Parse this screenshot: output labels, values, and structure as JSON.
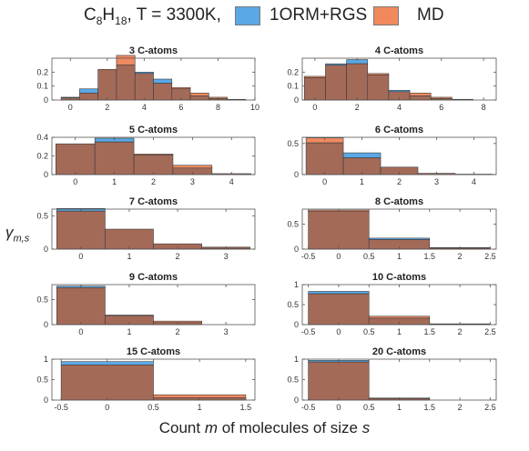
{
  "legend": {
    "title_parts": {
      "c": "C",
      "c_sub": "8",
      "h": "H",
      "h_sub": "18",
      "rest": ", T = 3300K,"
    },
    "series": [
      {
        "name": "1ORM+RGS",
        "color": "#5aa9e6"
      },
      {
        "name": "MD",
        "color": "#f08a5d"
      }
    ]
  },
  "y_label": {
    "main": "γ",
    "sub": "m,s"
  },
  "x_label": {
    "prefix": "Count ",
    "var": "m",
    "suffix": " of molecules of size ",
    "var2": "s"
  },
  "colors": {
    "rgs": "#5aa9e6",
    "md": "#ef8a62",
    "overlap": "#a46a58",
    "edge": "#3a3a3a"
  },
  "chart_data": [
    {
      "type": "bar",
      "title": "3 C-atoms",
      "bins": [
        0,
        1,
        2,
        3,
        4,
        5,
        6,
        7,
        8,
        9
      ],
      "rgs": [
        0.02,
        0.08,
        0.22,
        0.25,
        0.2,
        0.15,
        0.08,
        0.03,
        0.01,
        0.005
      ],
      "md": [
        0.015,
        0.05,
        0.22,
        0.32,
        0.19,
        0.12,
        0.09,
        0.05,
        0.02,
        0.0
      ],
      "xlim": [
        -1,
        10
      ],
      "ylim": [
        0,
        0.3
      ],
      "xticks": [
        0,
        2,
        4,
        6,
        8,
        10
      ],
      "yticks": [
        0,
        0.1,
        0.2
      ]
    },
    {
      "type": "bar",
      "title": "4 C-atoms",
      "bins": [
        0,
        1,
        2,
        3,
        4,
        5,
        6,
        7
      ],
      "rgs": [
        0.16,
        0.26,
        0.29,
        0.18,
        0.07,
        0.03,
        0.01,
        0.002
      ],
      "md": [
        0.17,
        0.25,
        0.26,
        0.19,
        0.06,
        0.05,
        0.02,
        0.005
      ],
      "xlim": [
        -0.6,
        8.6
      ],
      "ylim": [
        0,
        0.3
      ],
      "xticks": [
        0,
        2,
        4,
        6,
        8
      ],
      "yticks": [
        0,
        0.1,
        0.2
      ]
    },
    {
      "type": "bar",
      "title": "5 C-atoms",
      "bins": [
        0,
        1,
        2,
        3,
        4
      ],
      "rgs": [
        0.33,
        0.39,
        0.21,
        0.07,
        0.01
      ],
      "md": [
        0.33,
        0.35,
        0.22,
        0.1,
        0.01
      ],
      "xlim": [
        -0.6,
        4.6
      ],
      "ylim": [
        0,
        0.4
      ],
      "xticks": [
        0,
        1,
        2,
        3,
        4
      ],
      "yticks": [
        0,
        0.2,
        0.4
      ]
    },
    {
      "type": "bar",
      "title": "6 C-atoms",
      "bins": [
        0,
        1,
        2,
        3,
        4
      ],
      "rgs": [
        0.51,
        0.35,
        0.12,
        0.02,
        0.004
      ],
      "md": [
        0.59,
        0.27,
        0.12,
        0.02,
        0.006
      ],
      "xlim": [
        -0.6,
        4.6
      ],
      "ylim": [
        0,
        0.6
      ],
      "xticks": [
        0,
        1,
        2,
        3,
        4
      ],
      "yticks": [
        0,
        0.5
      ]
    },
    {
      "type": "bar",
      "title": "7 C-atoms",
      "bins": [
        0,
        1,
        2,
        3
      ],
      "rgs": [
        0.61,
        0.3,
        0.08,
        0.015
      ],
      "md": [
        0.57,
        0.3,
        0.08,
        0.03
      ],
      "xlim": [
        -0.6,
        3.6
      ],
      "ylim": [
        0,
        0.6
      ],
      "xticks": [
        0,
        1,
        2,
        3
      ],
      "yticks": [
        0,
        0.5
      ]
    },
    {
      "type": "bar",
      "title": "8 C-atoms",
      "bins": [
        0,
        1,
        2
      ],
      "rgs": [
        0.75,
        0.22,
        0.03
      ],
      "md": [
        0.78,
        0.19,
        0.02
      ],
      "xlim": [
        -0.6,
        2.6
      ],
      "ylim": [
        0,
        0.8
      ],
      "xticks": [
        -0.5,
        0,
        0.5,
        1,
        1.5,
        2,
        2.5
      ],
      "yticks": [
        0,
        0.5
      ]
    },
    {
      "type": "bar",
      "title": "9 C-atoms",
      "bins": [
        0,
        1,
        2
      ],
      "rgs": [
        0.77,
        0.19,
        0.04
      ],
      "md": [
        0.74,
        0.18,
        0.07
      ],
      "xlim": [
        -0.6,
        3.6
      ],
      "ylim": [
        0,
        0.8
      ],
      "xticks": [
        0,
        1,
        2,
        3
      ],
      "yticks": [
        0,
        0.5
      ]
    },
    {
      "type": "bar",
      "title": "10 C-atoms",
      "bins": [
        0,
        1,
        2
      ],
      "rgs": [
        0.83,
        0.16,
        0.01
      ],
      "md": [
        0.77,
        0.21,
        0.02
      ],
      "xlim": [
        -0.6,
        2.6
      ],
      "ylim": [
        0,
        1
      ],
      "xticks": [
        -0.5,
        0,
        0.5,
        1,
        1.5,
        2,
        2.5
      ],
      "yticks": [
        0,
        0.5,
        1
      ]
    },
    {
      "type": "bar",
      "title": "15 C-atoms",
      "bins": [
        0,
        1
      ],
      "rgs": [
        0.94,
        0.06
      ],
      "md": [
        0.86,
        0.13
      ],
      "xlim": [
        -0.6,
        1.6
      ],
      "ylim": [
        0,
        1
      ],
      "xticks": [
        -0.5,
        0,
        0.5,
        1,
        1.5
      ],
      "yticks": [
        0,
        0.5,
        1
      ]
    },
    {
      "type": "bar",
      "title": "20 C-atoms",
      "bins": [
        0,
        1
      ],
      "rgs": [
        0.97,
        0.03
      ],
      "md": [
        0.93,
        0.05
      ],
      "xlim": [
        -0.6,
        2.6
      ],
      "ylim": [
        0,
        1
      ],
      "xticks": [
        -0.5,
        0,
        0.5,
        1,
        1.5,
        2,
        2.5
      ],
      "yticks": [
        0,
        0.5,
        1
      ]
    }
  ]
}
